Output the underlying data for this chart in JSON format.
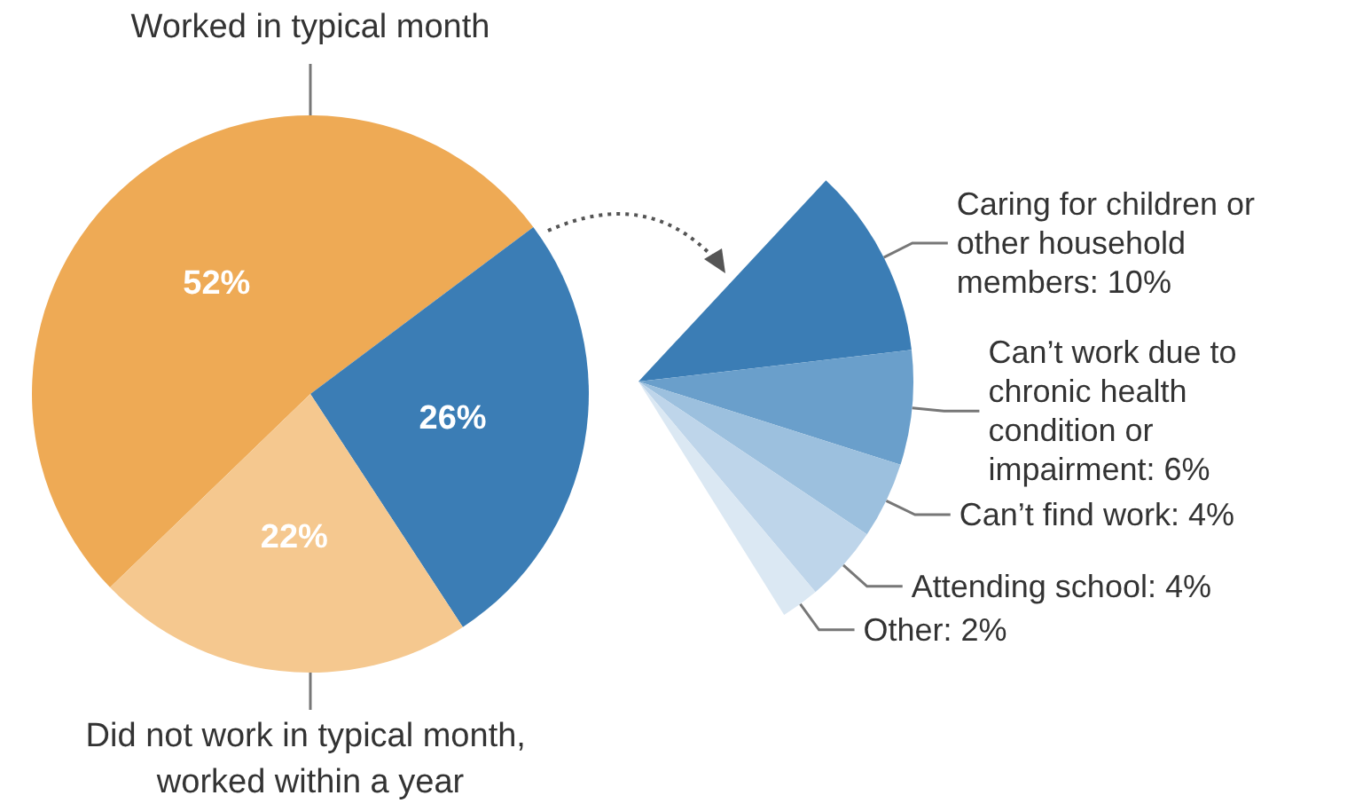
{
  "chart_data": [
    {
      "type": "pie",
      "categories": [
        "Worked in typical month",
        null,
        "Did not work in typical month, worked within a year"
      ],
      "values": [
        52,
        26,
        22
      ],
      "colors": [
        "#eeaa55",
        "#3b7db5",
        "#f5c88f"
      ],
      "value_labels": [
        "52%",
        "26%",
        "22%"
      ]
    },
    {
      "type": "pie",
      "categories": [
        "Caring for children or other household members",
        "Can’t work due to chronic health condition or impairment",
        "Can’t find work",
        "Attending school",
        "Other"
      ],
      "values": [
        10,
        6,
        4,
        4,
        2
      ],
      "colors": [
        "#3b7db5",
        "#6a9fcb",
        "#9cc0de",
        "#bed5ea",
        "#dbe8f3"
      ],
      "value_labels": [
        "10%",
        "6%",
        "4%",
        "4%",
        "2%"
      ]
    }
  ]
}
